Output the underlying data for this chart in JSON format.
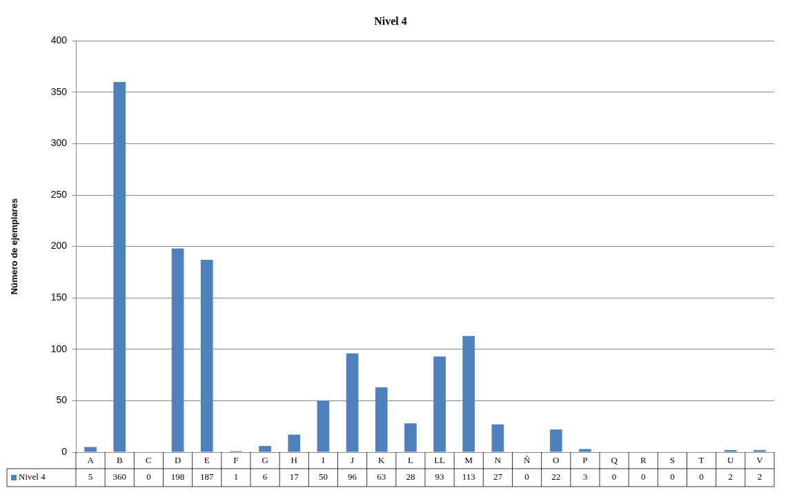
{
  "chart_data": {
    "type": "bar",
    "title": "Nivel 4",
    "ylabel": "Número de ejemplares",
    "categories": [
      "A",
      "B",
      "C",
      "D",
      "E",
      "F",
      "G",
      "H",
      "I",
      "J",
      "K",
      "L",
      "LL",
      "M",
      "N",
      "Ñ",
      "O",
      "P",
      "Q",
      "R",
      "S",
      "T",
      "U",
      "V"
    ],
    "series": [
      {
        "name": "Nivel 4",
        "color": "#4f81bd",
        "values": [
          5,
          360,
          0,
          198,
          187,
          1,
          6,
          17,
          50,
          96,
          63,
          28,
          93,
          113,
          27,
          0,
          22,
          3,
          0,
          0,
          0,
          0,
          2,
          2
        ]
      }
    ],
    "ylim": [
      0,
      400
    ],
    "yticks": [
      0,
      50,
      100,
      150,
      200,
      250,
      300,
      350,
      400
    ],
    "grid": "y",
    "legend": "bottom",
    "data_labels": true
  }
}
